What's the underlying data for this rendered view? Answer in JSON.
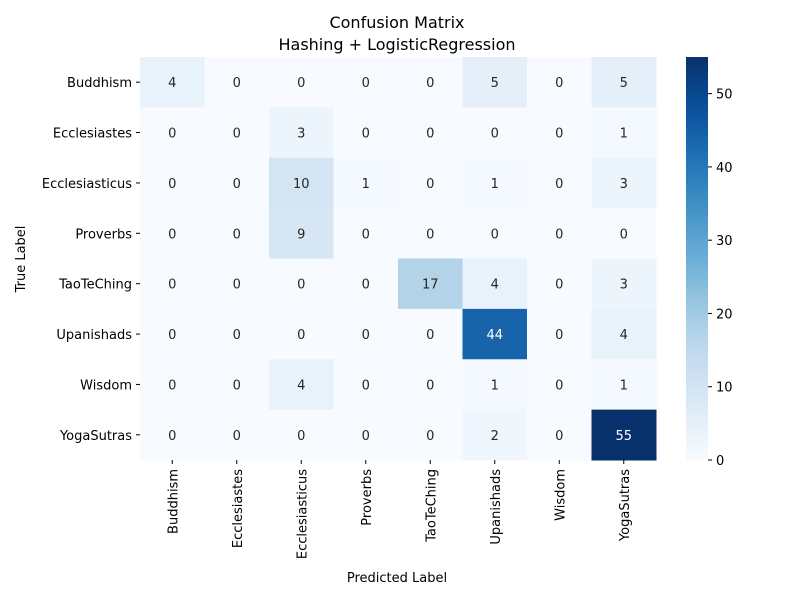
{
  "chart_data": {
    "type": "heatmap",
    "title": "Confusion Matrix",
    "subtitle": "Hashing + LogisticRegression",
    "xlabel": "Predicted Label",
    "ylabel": "True Label",
    "x_categories": [
      "Buddhism",
      "Ecclesiastes",
      "Ecclesiasticus",
      "Proverbs",
      "TaoTeChing",
      "Upanishads",
      "Wisdom",
      "YogaSutras"
    ],
    "y_categories": [
      "Buddhism",
      "Ecclesiastes",
      "Ecclesiasticus",
      "Proverbs",
      "TaoTeChing",
      "Upanishads",
      "Wisdom",
      "YogaSutras"
    ],
    "values": [
      [
        4,
        0,
        0,
        0,
        0,
        5,
        0,
        5
      ],
      [
        0,
        0,
        3,
        0,
        0,
        0,
        0,
        1
      ],
      [
        0,
        0,
        10,
        1,
        0,
        1,
        0,
        3
      ],
      [
        0,
        0,
        9,
        0,
        0,
        0,
        0,
        0
      ],
      [
        0,
        0,
        0,
        0,
        17,
        4,
        0,
        3
      ],
      [
        0,
        0,
        0,
        0,
        0,
        44,
        0,
        4
      ],
      [
        0,
        0,
        4,
        0,
        0,
        1,
        0,
        1
      ],
      [
        0,
        0,
        0,
        0,
        0,
        2,
        0,
        55
      ]
    ],
    "colormap": "Blues",
    "vmin": 0,
    "vmax": 55,
    "colorbar_ticks": [
      0,
      10,
      20,
      30,
      40,
      50
    ],
    "legend_position": "right"
  }
}
